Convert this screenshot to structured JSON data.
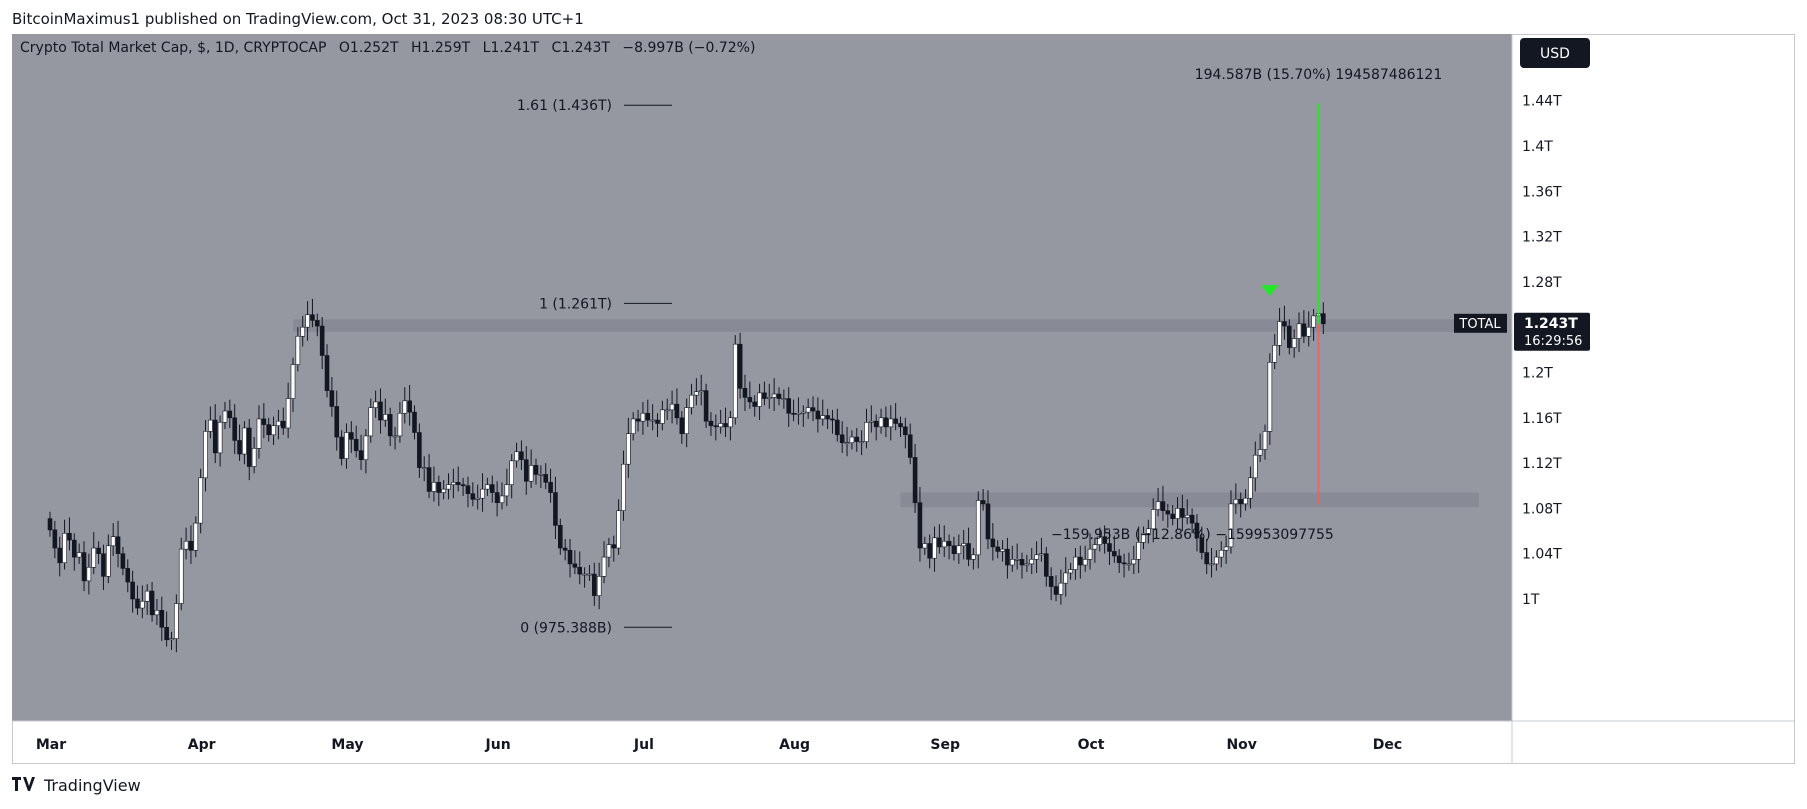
{
  "header": {
    "publish_line": "BitcoinMaximus1 published on TradingView.com, Oct 31, 2023 08:30 UTC+1"
  },
  "footer": {
    "brand": "TradingView"
  },
  "colors": {
    "plot_bg": "#9598a1",
    "zone": "#868993",
    "up": "#ffffff",
    "down": "#131722",
    "green": "#26e52a",
    "red": "#e06666",
    "label_bg": "#131722"
  },
  "chart_data": {
    "type": "candlestick",
    "symbol_line": "Crypto Total Market Cap, $, 1D, CRYPTOCAP",
    "ohlc": {
      "o_label": "O",
      "o": "1.252T",
      "h_label": "H",
      "h": "1.259T",
      "l_label": "L",
      "l": "1.241T",
      "c_label": "C",
      "c": "1.243T",
      "change": "−8.997B (−0.72%)"
    },
    "currency_button": "USD",
    "price_label": {
      "name": "TOTAL",
      "value": "1.243T",
      "countdown": "16:29:56"
    },
    "y_ticks": [
      "1.44T",
      "1.4T",
      "1.36T",
      "1.32T",
      "1.28T",
      "1.2T",
      "1.16T",
      "1.12T",
      "1.08T",
      "1.04T",
      "1T"
    ],
    "y_tick_values": [
      1.44,
      1.4,
      1.36,
      1.32,
      1.28,
      1.2,
      1.16,
      1.12,
      1.08,
      1.04,
      1.0
    ],
    "x_ticks": [
      "Mar",
      "Apr",
      "May",
      "Jun",
      "Jul",
      "Aug",
      "Sep",
      "Oct",
      "Nov",
      "Dec"
    ],
    "x_tick_days": [
      0,
      31,
      61,
      92,
      122,
      153,
      184,
      214,
      245,
      275
    ],
    "y_unit": "T",
    "fib_levels": [
      {
        "label": "1.61 (1.436T)",
        "value": 1.436
      },
      {
        "label": "1 (1.261T)",
        "value": 1.261
      },
      {
        "label": "0 (975.388B)",
        "value": 0.975
      }
    ],
    "zones": [
      {
        "from_day": 50,
        "to_day": 291,
        "low": 1.236,
        "high": 1.247
      },
      {
        "from_day": 175,
        "to_day": 294,
        "low": 1.081,
        "high": 1.094
      }
    ],
    "measure": {
      "up_label": "194.587B (15.70%) 194587486121",
      "down_label": "−159.953B (−12.86%) −159953097755",
      "day": 261,
      "top": 1.438,
      "mid": 1.243,
      "bottom": 1.083
    },
    "signal_marker": {
      "day": 251,
      "value": 1.271
    },
    "candles_close": [
      1.061,
      1.045,
      1.032,
      1.058,
      1.052,
      1.037,
      1.041,
      1.016,
      1.028,
      1.045,
      1.04,
      1.02,
      1.047,
      1.055,
      1.04,
      1.027,
      1.015,
      1.0,
      0.992,
      0.998,
      1.007,
      0.986,
      0.99,
      0.975,
      0.964,
      0.965,
      0.996,
      1.044,
      1.051,
      1.043,
      1.067,
      1.107,
      1.148,
      1.158,
      1.129,
      1.156,
      1.166,
      1.16,
      1.14,
      1.128,
      1.151,
      1.117,
      1.133,
      1.159,
      1.154,
      1.145,
      1.153,
      1.157,
      1.151,
      1.177,
      1.207,
      1.232,
      1.24,
      1.251,
      1.246,
      1.241,
      1.215,
      1.184,
      1.17,
      1.143,
      1.124,
      1.147,
      1.141,
      1.131,
      1.123,
      1.144,
      1.169,
      1.174,
      1.158,
      1.163,
      1.144,
      1.144,
      1.164,
      1.175,
      1.165,
      1.147,
      1.116,
      1.116,
      1.095,
      1.103,
      1.094,
      1.097,
      1.101,
      1.103,
      1.101,
      1.1,
      1.093,
      1.088,
      1.089,
      1.097,
      1.101,
      1.094,
      1.085,
      1.091,
      1.101,
      1.122,
      1.13,
      1.123,
      1.104,
      1.118,
      1.11,
      1.11,
      1.103,
      1.094,
      1.065,
      1.045,
      1.043,
      1.031,
      1.028,
      1.022,
      1.022,
      1.022,
      1.003,
      1.02,
      1.037,
      1.048,
      1.045,
      1.078,
      1.119,
      1.146,
      1.159,
      1.157,
      1.164,
      1.158,
      1.158,
      1.155,
      1.167,
      1.167,
      1.172,
      1.16,
      1.146,
      1.169,
      1.18,
      1.183,
      1.184,
      1.157,
      1.153,
      1.152,
      1.155,
      1.152,
      1.16,
      1.225,
      1.186,
      1.178,
      1.174,
      1.17,
      1.182,
      1.177,
      1.178,
      1.181,
      1.177,
      1.177,
      1.164,
      1.163,
      1.164,
      1.165,
      1.169,
      1.166,
      1.159,
      1.162,
      1.159,
      1.158,
      1.145,
      1.138,
      1.138,
      1.143,
      1.139,
      1.139,
      1.156,
      1.157,
      1.152,
      1.16,
      1.152,
      1.159,
      1.155,
      1.152,
      1.145,
      1.125,
      1.085,
      1.045,
      1.049,
      1.036,
      1.054,
      1.046,
      1.051,
      1.047,
      1.04,
      1.047,
      1.049,
      1.035,
      1.039,
      1.087,
      1.084,
      1.053,
      1.046,
      1.042,
      1.044,
      1.03,
      1.035,
      1.035,
      1.03,
      1.031,
      1.035,
      1.039,
      1.04,
      1.02,
      1.011,
      1.004,
      1.014,
      1.023,
      1.026,
      1.037,
      1.03,
      1.035,
      1.044,
      1.048,
      1.055,
      1.049,
      1.042,
      1.038,
      1.032,
      1.031,
      1.031,
      1.035,
      1.05,
      1.058,
      1.062,
      1.079,
      1.086,
      1.078,
      1.075,
      1.071,
      1.08,
      1.072,
      1.074,
      1.067,
      1.054,
      1.041,
      1.031,
      1.031,
      1.037,
      1.043,
      1.046,
      1.084,
      1.088,
      1.084,
      1.089,
      1.107,
      1.127,
      1.132,
      1.148,
      1.209,
      1.224,
      1.245,
      1.241,
      1.222,
      1.23,
      1.243,
      1.232,
      1.24,
      1.25,
      1.252,
      1.243
    ],
    "start_day": -1
  }
}
